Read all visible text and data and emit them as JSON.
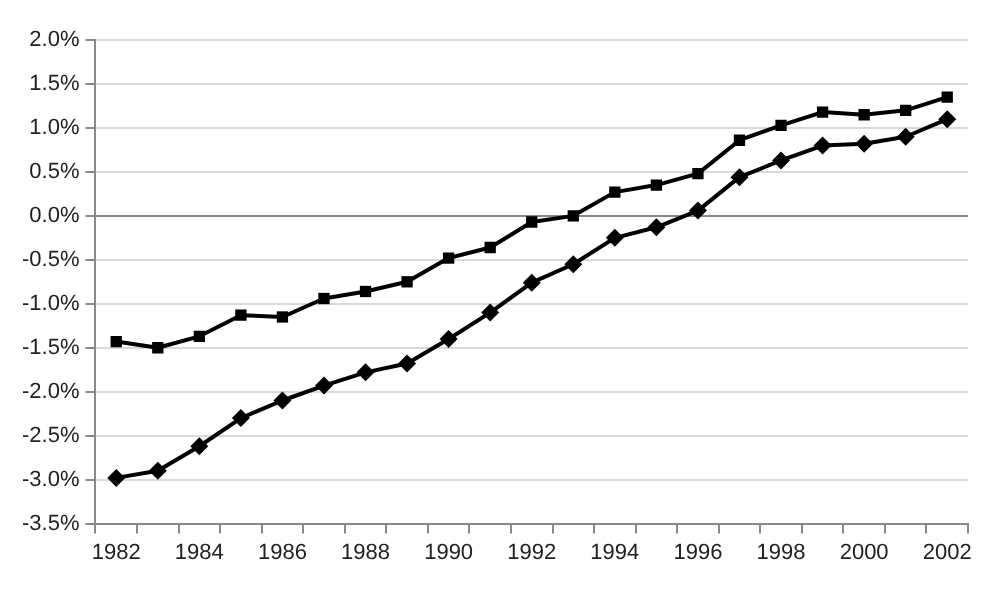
{
  "chart_data": {
    "type": "line",
    "categories": [
      "1982",
      null,
      "1984",
      null,
      "1986",
      null,
      "1988",
      null,
      "1990",
      null,
      "1992",
      null,
      "1994",
      null,
      "1996",
      null,
      "1998",
      null,
      "2000",
      null,
      "2002"
    ],
    "series": [
      {
        "color": "#000000",
        "marker": "square",
        "values": [
          -1.43,
          -1.5,
          -1.37,
          -1.13,
          -1.15,
          -0.94,
          -0.86,
          -0.75,
          -0.48,
          -0.36,
          -0.07,
          0.0,
          0.27,
          0.35,
          0.48,
          0.86,
          1.03,
          1.18,
          1.15,
          1.2,
          1.35
        ]
      },
      {
        "color": "#000000",
        "marker": "diamond",
        "values": [
          -2.98,
          -2.9,
          -2.62,
          -2.3,
          -2.1,
          -1.93,
          -1.78,
          -1.68,
          -1.4,
          -1.1,
          -0.76,
          -0.55,
          -0.25,
          -0.13,
          0.06,
          0.44,
          0.63,
          0.8,
          0.82,
          0.9,
          1.1
        ]
      }
    ],
    "ylim": [
      -3.5,
      2.0
    ],
    "yticks": [
      {
        "value": -3.5,
        "label": "-3.5%"
      },
      {
        "value": -3.0,
        "label": "-3.0%"
      },
      {
        "value": -2.5,
        "label": "-2.5%"
      },
      {
        "value": -2.0,
        "label": "-2.0%"
      },
      {
        "value": -1.5,
        "label": "-1.5%"
      },
      {
        "value": -1.0,
        "label": "-1.0%"
      },
      {
        "value": -0.5,
        "label": "-0.5%"
      },
      {
        "value": 0,
        "label": "0.0%"
      },
      {
        "value": 0.5,
        "label": "0.5%"
      },
      {
        "value": 1.0,
        "label": "1.0%"
      },
      {
        "value": 1.5,
        "label": "1.5%"
      },
      {
        "value": 2.0,
        "label": "2.0%"
      }
    ],
    "grid": "y",
    "legend": false,
    "line_style": "solid"
  }
}
